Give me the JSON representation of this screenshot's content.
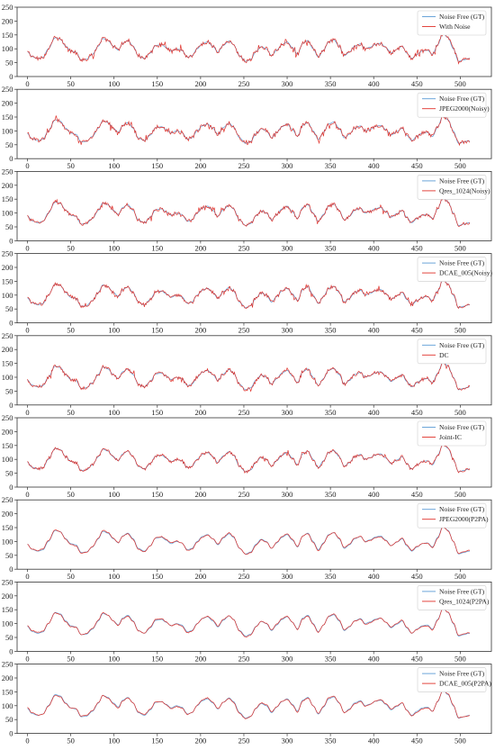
{
  "figure": {
    "colors": {
      "gt": "#5b9bd5",
      "pred": "#e0312a",
      "axis": "#333333"
    },
    "x_ticks": [
      0,
      50,
      100,
      150,
      200,
      250,
      300,
      350,
      400,
      450,
      500
    ],
    "y_ticks": [
      0,
      50,
      100,
      150,
      200,
      250
    ],
    "xlim": [
      -12,
      536
    ],
    "ylim": [
      0,
      250
    ]
  },
  "chart_data": [
    {
      "type": "line",
      "xlim": [
        -12,
        536
      ],
      "ylim": [
        0,
        250
      ],
      "legend": "top-right",
      "noise": 7,
      "smooth": false,
      "series": [
        {
          "name": "Noise Free (GT)",
          "role": "gt"
        },
        {
          "name": "With Noise",
          "role": "pred"
        }
      ]
    },
    {
      "type": "line",
      "xlim": [
        -12,
        536
      ],
      "ylim": [
        0,
        250
      ],
      "legend": "top-right",
      "noise": 7,
      "smooth": false,
      "series": [
        {
          "name": "Noise Free (GT)",
          "role": "gt"
        },
        {
          "name": "JPEG2000(Noisy)",
          "role": "pred"
        }
      ]
    },
    {
      "type": "line",
      "xlim": [
        -12,
        536
      ],
      "ylim": [
        0,
        250
      ],
      "legend": "top-right",
      "noise": 6,
      "smooth": false,
      "series": [
        {
          "name": "Noise Free (GT)",
          "role": "gt"
        },
        {
          "name": "Qres_1024(Noisy)",
          "role": "pred"
        }
      ]
    },
    {
      "type": "line",
      "xlim": [
        -12,
        536
      ],
      "ylim": [
        0,
        250
      ],
      "legend": "top-right",
      "noise": 6,
      "smooth": false,
      "series": [
        {
          "name": "Noise Free (GT)",
          "role": "gt"
        },
        {
          "name": "DCAE_005(Noisy)",
          "role": "pred"
        }
      ]
    },
    {
      "type": "line",
      "xlim": [
        -12,
        536
      ],
      "ylim": [
        0,
        250
      ],
      "legend": "top-right",
      "noise": 6,
      "smooth": false,
      "series": [
        {
          "name": "Noise Free (GT)",
          "role": "gt"
        },
        {
          "name": "DC",
          "role": "pred"
        }
      ]
    },
    {
      "type": "line",
      "xlim": [
        -12,
        536
      ],
      "ylim": [
        0,
        250
      ],
      "legend": "top-right",
      "noise": 5,
      "smooth": false,
      "series": [
        {
          "name": "Noise Free (GT)",
          "role": "gt"
        },
        {
          "name": "Joint-IC",
          "role": "pred"
        }
      ]
    },
    {
      "type": "line",
      "xlim": [
        -12,
        536
      ],
      "ylim": [
        0,
        250
      ],
      "legend": "top-right",
      "noise": 4,
      "smooth": true,
      "series": [
        {
          "name": "Noise Free (GT)",
          "role": "gt"
        },
        {
          "name": "JPEG2000(P2PA)",
          "role": "pred"
        }
      ]
    },
    {
      "type": "line",
      "xlim": [
        -12,
        536
      ],
      "ylim": [
        0,
        250
      ],
      "legend": "top-right",
      "noise": 4,
      "smooth": true,
      "series": [
        {
          "name": "Noise Free (GT)",
          "role": "gt"
        },
        {
          "name": "Qres_1024(P2PA)",
          "role": "pred"
        }
      ]
    },
    {
      "type": "line",
      "xlim": [
        -12,
        536
      ],
      "ylim": [
        0,
        250
      ],
      "legend": "top-right",
      "noise": 4,
      "smooth": true,
      "series": [
        {
          "name": "Noise Free (GT)",
          "role": "gt"
        },
        {
          "name": "DCAE_005(P2PA)",
          "role": "pred"
        }
      ]
    }
  ],
  "ground_truth_peaks": [
    [
      0,
      90
    ],
    [
      5,
      72
    ],
    [
      12,
      65
    ],
    [
      18,
      70
    ],
    [
      24,
      100
    ],
    [
      32,
      140
    ],
    [
      38,
      135
    ],
    [
      44,
      110
    ],
    [
      50,
      92
    ],
    [
      56,
      88
    ],
    [
      62,
      60
    ],
    [
      68,
      62
    ],
    [
      75,
      80
    ],
    [
      82,
      110
    ],
    [
      87,
      137
    ],
    [
      93,
      130
    ],
    [
      99,
      110
    ],
    [
      105,
      95
    ],
    [
      110,
      120
    ],
    [
      116,
      130
    ],
    [
      122,
      110
    ],
    [
      128,
      75
    ],
    [
      135,
      65
    ],
    [
      142,
      85
    ],
    [
      148,
      112
    ],
    [
      155,
      115
    ],
    [
      160,
      105
    ],
    [
      166,
      92
    ],
    [
      172,
      100
    ],
    [
      178,
      95
    ],
    [
      185,
      70
    ],
    [
      190,
      75
    ],
    [
      196,
      100
    ],
    [
      202,
      118
    ],
    [
      208,
      125
    ],
    [
      214,
      110
    ],
    [
      220,
      88
    ],
    [
      226,
      112
    ],
    [
      233,
      128
    ],
    [
      238,
      115
    ],
    [
      245,
      75
    ],
    [
      252,
      55
    ],
    [
      258,
      62
    ],
    [
      264,
      90
    ],
    [
      270,
      108
    ],
    [
      276,
      100
    ],
    [
      282,
      75
    ],
    [
      288,
      95
    ],
    [
      294,
      115
    ],
    [
      300,
      125
    ],
    [
      306,
      105
    ],
    [
      312,
      80
    ],
    [
      318,
      120
    ],
    [
      324,
      130
    ],
    [
      330,
      100
    ],
    [
      336,
      70
    ],
    [
      342,
      95
    ],
    [
      348,
      125
    ],
    [
      354,
      132
    ],
    [
      360,
      110
    ],
    [
      366,
      75
    ],
    [
      372,
      88
    ],
    [
      378,
      110
    ],
    [
      385,
      118
    ],
    [
      390,
      100
    ],
    [
      396,
      106
    ],
    [
      402,
      116
    ],
    [
      408,
      120
    ],
    [
      414,
      105
    ],
    [
      420,
      85
    ],
    [
      427,
      98
    ],
    [
      433,
      110
    ],
    [
      438,
      85
    ],
    [
      444,
      65
    ],
    [
      450,
      80
    ],
    [
      456,
      92
    ],
    [
      462,
      95
    ],
    [
      468,
      80
    ],
    [
      474,
      115
    ],
    [
      480,
      155
    ],
    [
      486,
      140
    ],
    [
      492,
      100
    ],
    [
      498,
      55
    ],
    [
      504,
      60
    ],
    [
      510,
      65
    ]
  ]
}
